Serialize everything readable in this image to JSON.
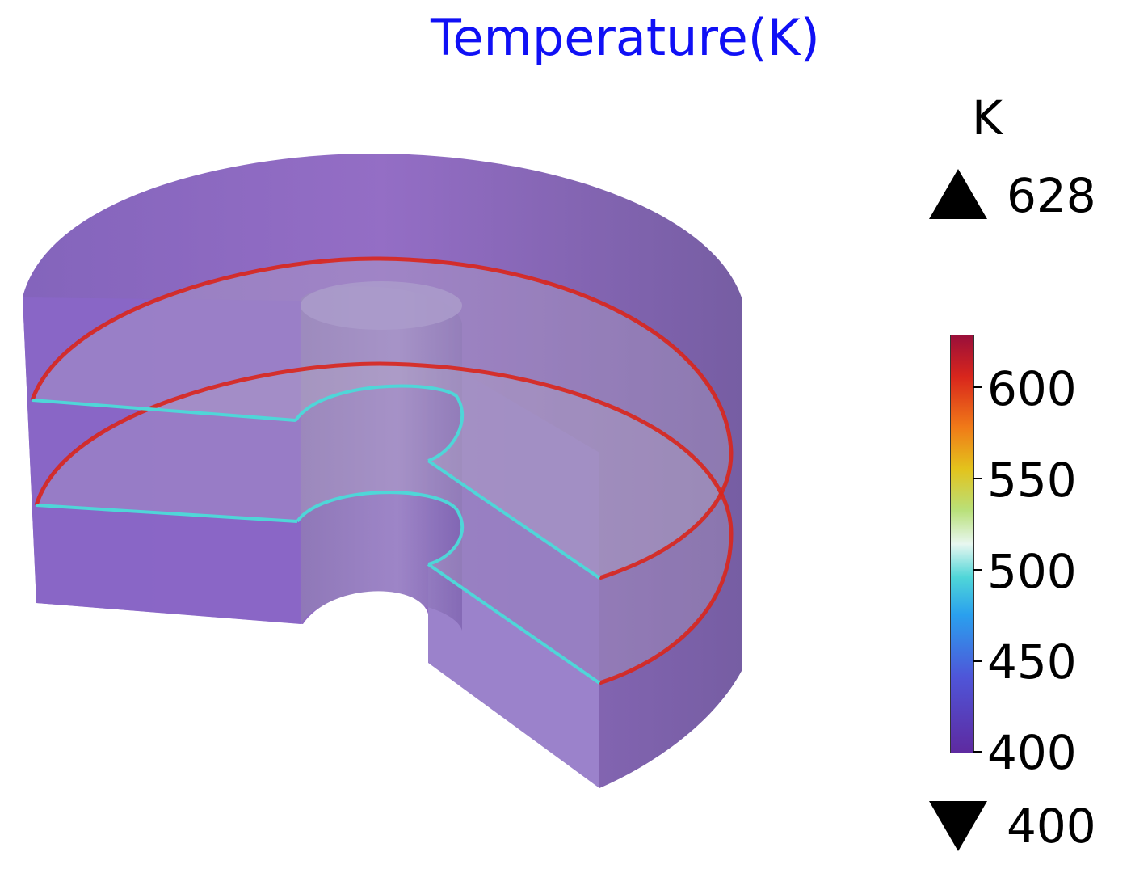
{
  "title": "Temperature(K)",
  "colorbar": {
    "unit": "K",
    "max_label": "628",
    "min_label": "400",
    "ticks": [
      "600",
      "550",
      "500",
      "450",
      "400"
    ],
    "colors": [
      "#5e2aa0",
      "#4f55d8",
      "#2aa0ee",
      "#4fd6d8",
      "#e8f7f0",
      "#b9e07a",
      "#e3c31c",
      "#f07a18",
      "#d9261c",
      "#9a0f3a"
    ]
  },
  "model": {
    "body_color": "#8a62c0",
    "hot_line_color": "#d9261c",
    "cool_line_color": "#4fd6d8"
  }
}
